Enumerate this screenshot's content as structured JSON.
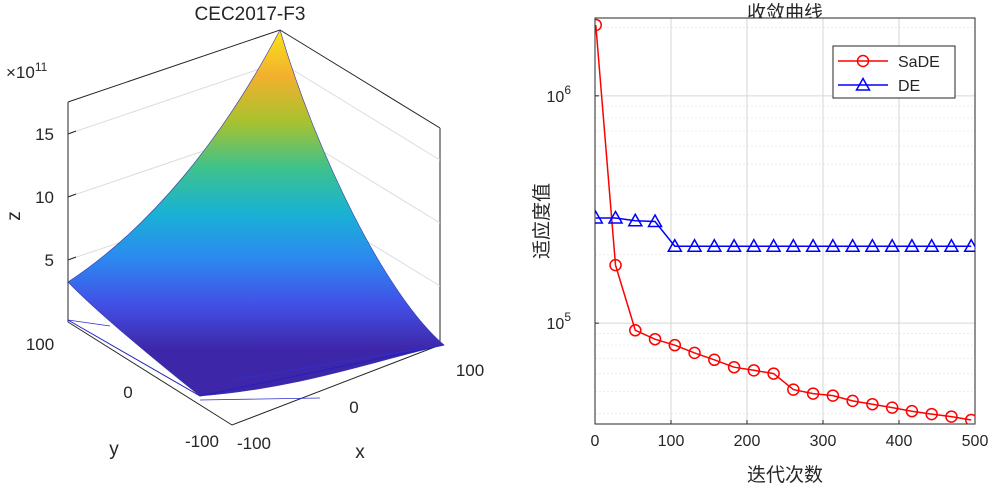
{
  "chart_data": [
    {
      "type": "surface3d",
      "title": "CEC2017-F3",
      "xlabel": "x",
      "ylabel": "y",
      "zlabel": "z",
      "z_multiplier_label": "×10",
      "z_multiplier_exponent": "11",
      "x_ticks": [
        "-100",
        "0",
        "100"
      ],
      "y_ticks": [
        "-100",
        "0",
        "100"
      ],
      "z_ticks": [
        "5",
        "10",
        "15"
      ],
      "xlim": [
        -100,
        100
      ],
      "ylim": [
        -100,
        100
      ],
      "zlim": [
        0,
        1900000000000.0
      ],
      "colormap": "parula",
      "colormap_stops": [
        "#3e26a8",
        "#4250e6",
        "#2c89f0",
        "#19b2d3",
        "#3ec28b",
        "#a8c22e",
        "#f3b02e",
        "#f9e31a"
      ]
    },
    {
      "type": "line",
      "title": "收敛曲线",
      "xlabel": "迭代次数",
      "ylabel": "适应度值",
      "yscale": "log",
      "xlim": [
        0,
        500
      ],
      "ylim": [
        36000,
        2200000
      ],
      "x_ticks": [
        0,
        100,
        200,
        300,
        400,
        500
      ],
      "x_tick_labels": [
        "0",
        "100",
        "200",
        "300",
        "400",
        "500"
      ],
      "y_ticks": [
        100000,
        1000000
      ],
      "y_tick_labels": [
        {
          "base": "10",
          "exp": "5"
        },
        {
          "base": "10",
          "exp": "6"
        }
      ],
      "grid": true,
      "legend_position": "top-right",
      "series": [
        {
          "name": "SaDE",
          "color": "#ff0000",
          "marker": "circle",
          "x": [
            1,
            27,
            53,
            79,
            105,
            131,
            157,
            183,
            209,
            235,
            261,
            287,
            313,
            339,
            365,
            391,
            417,
            443,
            469,
            495
          ],
          "y": [
            2050000,
            180000,
            93000,
            85000,
            80000,
            74000,
            69000,
            64000,
            62000,
            60000,
            51000,
            49000,
            48000,
            45500,
            44000,
            42500,
            41000,
            39800,
            38800,
            37500
          ]
        },
        {
          "name": "DE",
          "color": "#0000ff",
          "marker": "triangle",
          "x": [
            1,
            27,
            53,
            79,
            105,
            131,
            157,
            183,
            209,
            235,
            261,
            287,
            313,
            339,
            365,
            391,
            417,
            443,
            469,
            495
          ],
          "y": [
            290000,
            290000,
            282000,
            280000,
            218000,
            218000,
            218000,
            218000,
            218000,
            218000,
            218000,
            218000,
            218000,
            218000,
            218000,
            218000,
            218000,
            218000,
            218000,
            218000
          ]
        }
      ]
    }
  ]
}
